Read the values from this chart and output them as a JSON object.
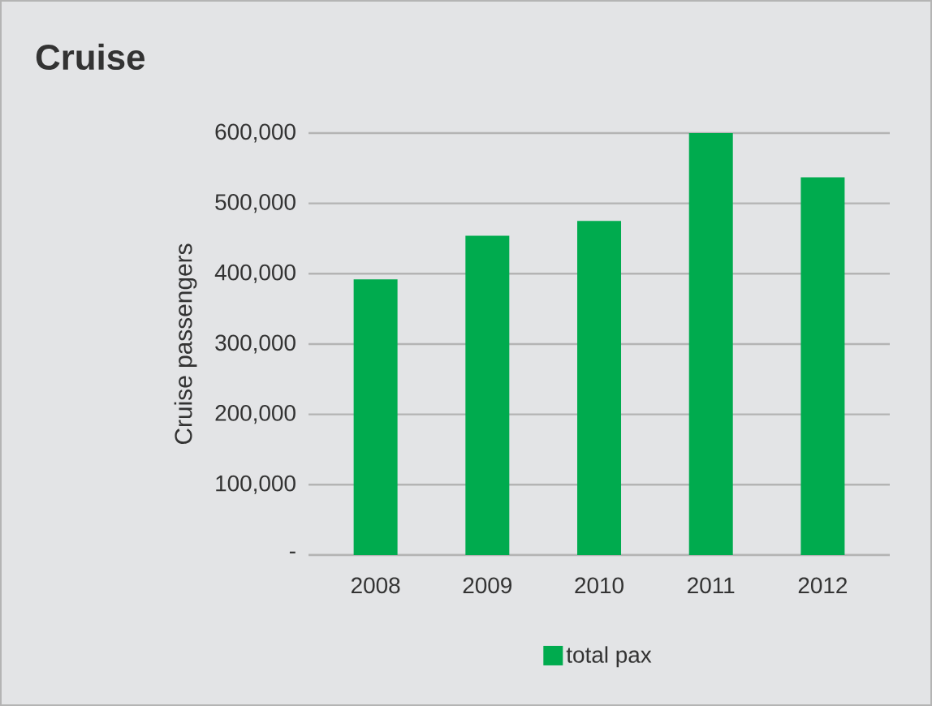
{
  "chart_data": {
    "type": "bar",
    "title": "Cruise",
    "ylabel": "Cruise passengers",
    "categories": [
      "2008",
      "2009",
      "2010",
      "2011",
      "2012"
    ],
    "series": [
      {
        "name": "total pax",
        "color": "#00ab4e",
        "values": [
          392000,
          454000,
          475000,
          600000,
          537000
        ]
      }
    ],
    "ylim": [
      0,
      600000
    ],
    "yticks": [
      {
        "value": 0,
        "label": "-"
      },
      {
        "value": 100000,
        "label": "100,000"
      },
      {
        "value": 200000,
        "label": "200,000"
      },
      {
        "value": 300000,
        "label": "300,000"
      },
      {
        "value": 400000,
        "label": "400,000"
      },
      {
        "value": 500000,
        "label": "500,000"
      },
      {
        "value": 600000,
        "label": "600,000"
      }
    ],
    "grid": "y",
    "legend": "bottom"
  }
}
